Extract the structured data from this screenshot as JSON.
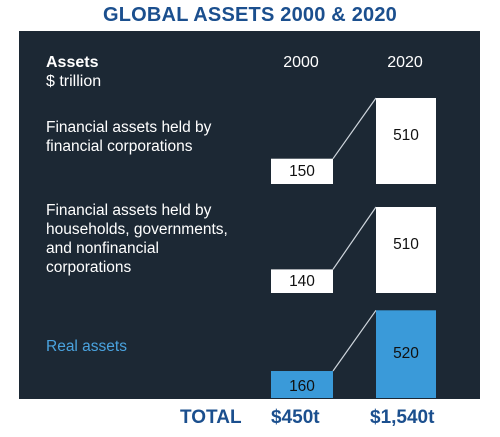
{
  "chart_data": {
    "type": "bar",
    "title": "GLOBAL ASSETS 2000 & 2020",
    "header_label": "Assets",
    "unit_label": "$ trillion",
    "years": [
      "2000",
      "2020"
    ],
    "categories": [
      "Financial assets held by financial corporations",
      "Financial assets held by households, governments, and nonfinancial corporations",
      "Real assets"
    ],
    "category_lines": [
      [
        "Financial assets held by",
        "financial corporations"
      ],
      [
        "Financial assets held by",
        "households, governments,",
        "and nonfinancial",
        "corporations"
      ],
      [
        "Real assets"
      ]
    ],
    "series": [
      {
        "values": [
          150,
          140,
          160
        ]
      },
      {
        "values": [
          510,
          510,
          520
        ]
      }
    ],
    "value_labels": [
      [
        "150",
        "140",
        "160"
      ],
      [
        "510",
        "510",
        "520"
      ]
    ],
    "colors": {
      "financial": "#ffffff",
      "real": "#3a9ad9",
      "panel": "#1c2834",
      "connector": "#cfd6dd"
    },
    "totals_label": "TOTAL",
    "totals": [
      "$450t",
      "$1,540t"
    ]
  }
}
